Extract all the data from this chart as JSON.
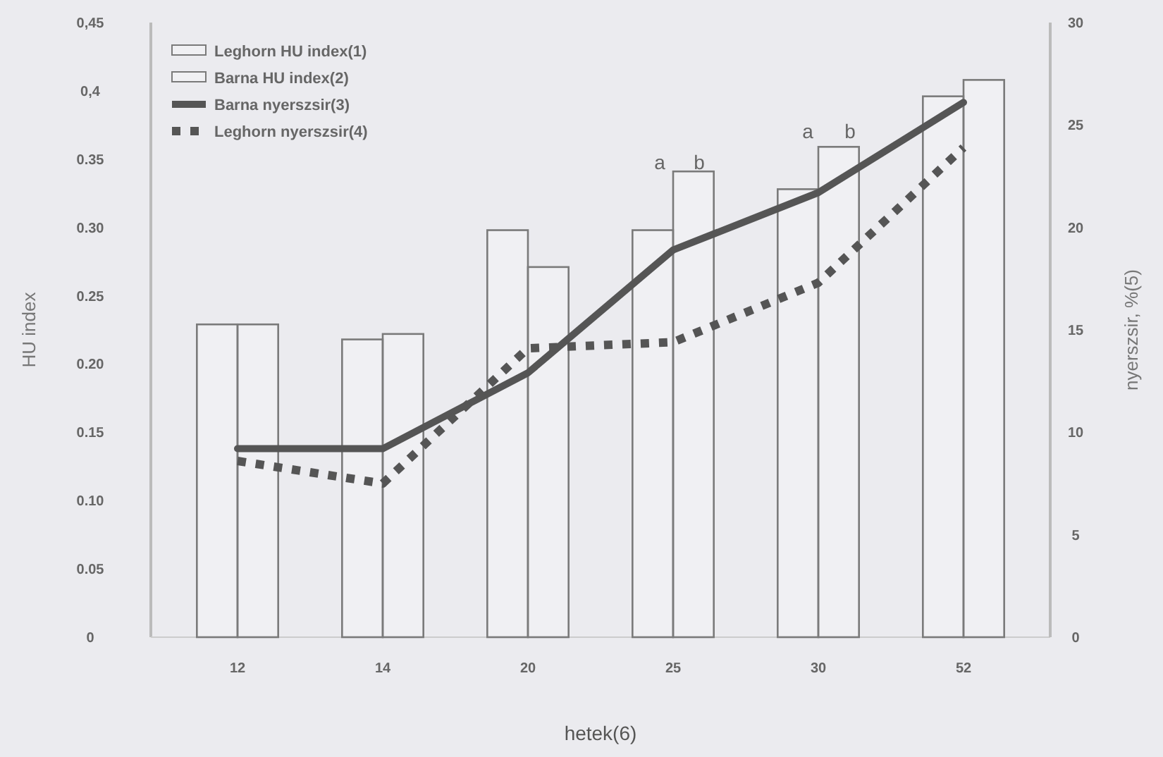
{
  "chart_data": {
    "type": "bar",
    "xlabel": "hetek(6)",
    "ylabel": "HU index",
    "y2label": "nyerszsir, %(5)",
    "categories": [
      "12",
      "14",
      "20",
      "25",
      "30",
      "52"
    ],
    "series": [
      {
        "name": "Leghorn HU index(1)",
        "color": "#ffffff",
        "values": [
          0.229,
          0.218,
          0.298,
          0.298,
          0.328,
          0.396
        ]
      },
      {
        "name": "Barna HU index(2)",
        "color": "#ffffff",
        "values": [
          0.229,
          0.222,
          0.271,
          0.341,
          0.359,
          0.408
        ]
      },
      {
        "name": "Barna nyerszsir(3)",
        "type": "line",
        "axis": "y2",
        "color": "#555555",
        "line_style": "solid",
        "values": [
          9.2,
          9.2,
          12.9,
          18.9,
          21.7,
          26.1
        ]
      },
      {
        "name": "Leghorn nyerszsir(4)",
        "type": "line",
        "axis": "y2",
        "color": "#555555",
        "line_style": "dotted",
        "values": [
          8.6,
          7.5,
          14.1,
          14.4,
          17.3,
          23.9
        ]
      }
    ],
    "ylim": [
      0,
      0.45
    ],
    "yticks": [
      0,
      {
        "value": 0.05,
        "label": "0.05"
      },
      {
        "value": 0.1,
        "label": "0.10"
      },
      0.15,
      {
        "value": 0.2,
        "label": "0.20"
      },
      0.25,
      {
        "value": 0.3,
        "label": "0.30"
      },
      0.35,
      {
        "value": 0.4,
        "label": "0,4"
      },
      {
        "value": 0.45,
        "label": "0,45"
      }
    ],
    "y2lim": [
      0,
      30
    ],
    "y2ticks": [
      0,
      5,
      10,
      15,
      20,
      25,
      30
    ],
    "annotations": [
      "a",
      "b",
      "a",
      "b"
    ],
    "legend": "top left",
    "grid": false
  }
}
